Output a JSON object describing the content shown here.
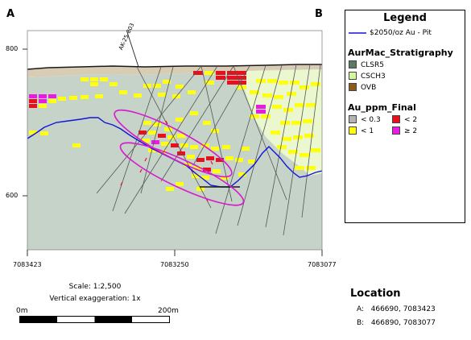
{
  "section": {
    "label_left": "A",
    "label_right": "B",
    "elevation_ticks": [
      "800",
      "600"
    ],
    "northing_ticks": [
      "7083423",
      "7083250",
      "7083077"
    ],
    "drillhole_label": "AK-25-803"
  },
  "legend": {
    "title": "Legend",
    "pit": {
      "label": "$2050/oz Au - Pit",
      "color": "#1414d8"
    },
    "stratigraphy": {
      "heading": "AurMac_Stratigraphy",
      "items": [
        {
          "label": "CLSR5",
          "color": "#5a7a62"
        },
        {
          "label": "CSCH3",
          "color": "#d6f5a0"
        },
        {
          "label": "OVB",
          "color": "#8b5a1c"
        }
      ]
    },
    "grade": {
      "heading": "Au_ppm_Final",
      "items": [
        {
          "label": "< 0.3",
          "color": "#b4b4b4"
        },
        {
          "label": "< 2",
          "color": "#e8101c"
        },
        {
          "label": "< 1",
          "color": "#ffff10"
        },
        {
          "label": "≥ 2",
          "color": "#e81ce0"
        }
      ]
    }
  },
  "scale": {
    "label": "Scale: 1:2,500",
    "vertical_exaggeration": "Vertical exaggeration: 1x",
    "bar_start": "0m",
    "bar_end": "200m"
  },
  "location": {
    "title": "Location",
    "a_label": "A:",
    "a_value": "466690, 7083423",
    "b_label": "B:",
    "b_value": "466890, 7083077"
  }
}
